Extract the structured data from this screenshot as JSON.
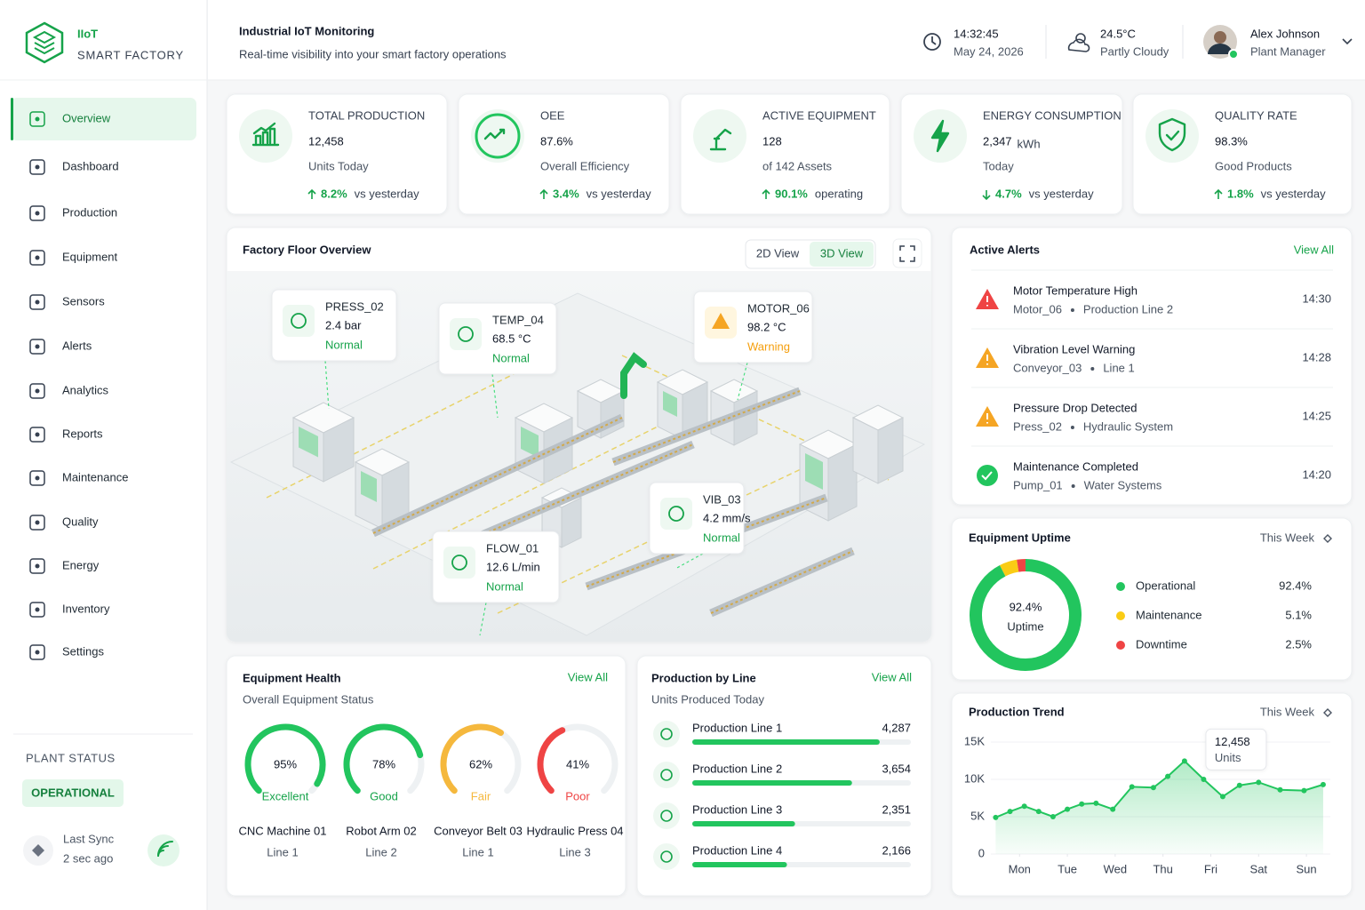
{
  "sidebar": {
    "brand": "IIoT",
    "tagline": "SMART FACTORY",
    "nav": [
      "Overview",
      "Dashboard",
      "Production",
      "Equipment",
      "Sensors",
      "Alerts",
      "Analytics",
      "Reports",
      "Maintenance",
      "Quality",
      "Energy",
      "Inventory",
      "Settings"
    ],
    "active_nav": 0,
    "plant_status_label": "PLANT STATUS",
    "plant_status": "OPERATIONAL",
    "sync_label": "Last Sync",
    "sync_value": "2 sec ago"
  },
  "header": {
    "title": "Industrial IoT Monitoring",
    "subtitle": "Real-time visibility into your smart factory operations",
    "time": "14:32:45",
    "date": "May 24, 2026",
    "temperature": "24.5°C",
    "weather": "Partly Cloudy",
    "user_name": "Alex Johnson",
    "user_role": "Plant Manager"
  },
  "kpis": [
    {
      "label": "TOTAL PRODUCTION",
      "value": "12,458",
      "caption": "Units Today",
      "change": "8.2%",
      "trend": "up",
      "note": "vs yesterday"
    },
    {
      "label": "OEE",
      "value": "87.6%",
      "caption": "Overall Efficiency",
      "change": "3.4%",
      "trend": "up",
      "note": "vs yesterday"
    },
    {
      "label": "ACTIVE EQUIPMENT",
      "value": "128",
      "caption": "of 142 Assets",
      "change": "90.1%",
      "trend": "up",
      "note": "operating"
    },
    {
      "label": "ENERGY CONSUMPTION",
      "value": "2,347",
      "unit": "kWh",
      "caption": "Today",
      "change": "4.7%",
      "trend": "down",
      "note": "vs yesterday"
    },
    {
      "label": "QUALITY RATE",
      "value": "98.3%",
      "caption": "Good Products",
      "change": "1.8%",
      "trend": "up",
      "note": "vs yesterday"
    }
  ],
  "floor": {
    "title": "Factory Floor Overview",
    "views": [
      "2D View",
      "3D View"
    ],
    "active_view": 1,
    "sensors": [
      {
        "id": "PRESS_02",
        "value": "2.4 bar",
        "status": "Normal",
        "color": "#16a34a"
      },
      {
        "id": "TEMP_04",
        "value": "68.5 °C",
        "status": "Normal",
        "color": "#16a34a"
      },
      {
        "id": "MOTOR_06",
        "value": "98.2 °C",
        "status": "Warning",
        "color": "#f59e0b"
      },
      {
        "id": "VIB_03",
        "value": "4.2 mm/s",
        "status": "Normal",
        "color": "#16a34a"
      },
      {
        "id": "FLOW_01",
        "value": "12.6 L/min",
        "status": "Normal",
        "color": "#16a34a"
      }
    ]
  },
  "alerts": {
    "title": "Active Alerts",
    "link": "View All",
    "items": [
      {
        "title": "Motor Temperature High",
        "source": "Motor_06",
        "location": "Production Line 2",
        "time": "14:30",
        "color": "#ef4444"
      },
      {
        "title": "Vibration Level Warning",
        "source": "Conveyor_03",
        "location": "Line 1",
        "time": "14:28",
        "color": "#f5a524"
      },
      {
        "title": "Pressure Drop Detected",
        "source": "Press_02",
        "location": "Hydraulic System",
        "time": "14:25",
        "color": "#f5a524"
      },
      {
        "title": "Maintenance Completed",
        "source": "Pump_01",
        "location": "Water Systems",
        "time": "14:20",
        "color": "#22c55e"
      }
    ]
  },
  "chart_data": [
    {
      "type": "gauge",
      "title": "Equipment Health",
      "subtitle": "Overall Equipment Status",
      "link": "View All",
      "categories": [
        "CNC Machine 01",
        "Robot Arm 02",
        "Conveyor Belt 03",
        "Hydraulic Press 04"
      ],
      "locations": [
        "Line 1",
        "Line 2",
        "Line 1",
        "Line 3"
      ],
      "values": [
        95,
        78,
        62,
        41
      ],
      "value_labels": [
        "95%",
        "78%",
        "62%",
        "41%"
      ],
      "statuses": [
        "Excellent",
        "Good",
        "Fair",
        "Poor"
      ],
      "colors": [
        "#22c55e",
        "#22c55e",
        "#f5b83d",
        "#ef4444"
      ],
      "ylim": [
        0,
        100
      ]
    },
    {
      "type": "bar",
      "title": "Production by Line",
      "subtitle": "Units Produced Today",
      "link": "View All",
      "categories": [
        "Production Line 1",
        "Production Line 2",
        "Production Line 3",
        "Production Line 4"
      ],
      "values": [
        4287,
        3654,
        2351,
        2166
      ],
      "value_labels": [
        "4,287",
        "3,654",
        "2,351",
        "2,166"
      ],
      "color": "#22c55e",
      "xlim": [
        0,
        5000
      ]
    },
    {
      "type": "donut",
      "title": "Equipment Uptime",
      "period": "This Week",
      "center_caption": "Uptime",
      "categories": [
        "Operational",
        "Maintenance",
        "Downtime"
      ],
      "values": [
        92.4,
        5.1,
        2.5
      ],
      "value_labels": [
        "92.4%",
        "5.1%",
        "2.5%"
      ],
      "colors": [
        "#22c55e",
        "#facc15",
        "#ef4444"
      ]
    },
    {
      "type": "line",
      "title": "Production Trend",
      "period": "This Week",
      "unit_label": "Units",
      "x": [
        -0.5,
        -0.2,
        0.1,
        0.4,
        0.7,
        1.0,
        1.3,
        1.6,
        1.95,
        2.35,
        2.8,
        3.1,
        3.45,
        3.85,
        4.25,
        4.6,
        5.0,
        5.45,
        5.95,
        6.35
      ],
      "values": [
        4900,
        5700,
        6400,
        5700,
        5000,
        6000,
        6700,
        6800,
        6000,
        9000,
        8900,
        10400,
        12458,
        10000,
        7700,
        9200,
        9600,
        8600,
        8500,
        9300
      ],
      "value_labels": [
        null,
        null,
        null,
        null,
        null,
        null,
        null,
        null,
        null,
        null,
        null,
        null,
        "12,458",
        null,
        null,
        null,
        null,
        null,
        null,
        null
      ],
      "xlim": [
        -0.6,
        6.5
      ],
      "xticks": [
        {
          "value": 0,
          "label": "Mon"
        },
        {
          "value": 1,
          "label": "Tue"
        },
        {
          "value": 2,
          "label": "Wed"
        },
        {
          "value": 3,
          "label": "Thu"
        },
        {
          "value": 4,
          "label": "Fri"
        },
        {
          "value": 5,
          "label": "Sat"
        },
        {
          "value": 6,
          "label": "Sun"
        }
      ],
      "ylim": [
        0,
        15000
      ],
      "yticks": [
        0,
        {
          "value": 5000,
          "label": "5K"
        },
        {
          "value": 10000,
          "label": "10K"
        },
        {
          "value": 15000,
          "label": "15K"
        }
      ],
      "color": "#22c55e"
    }
  ]
}
